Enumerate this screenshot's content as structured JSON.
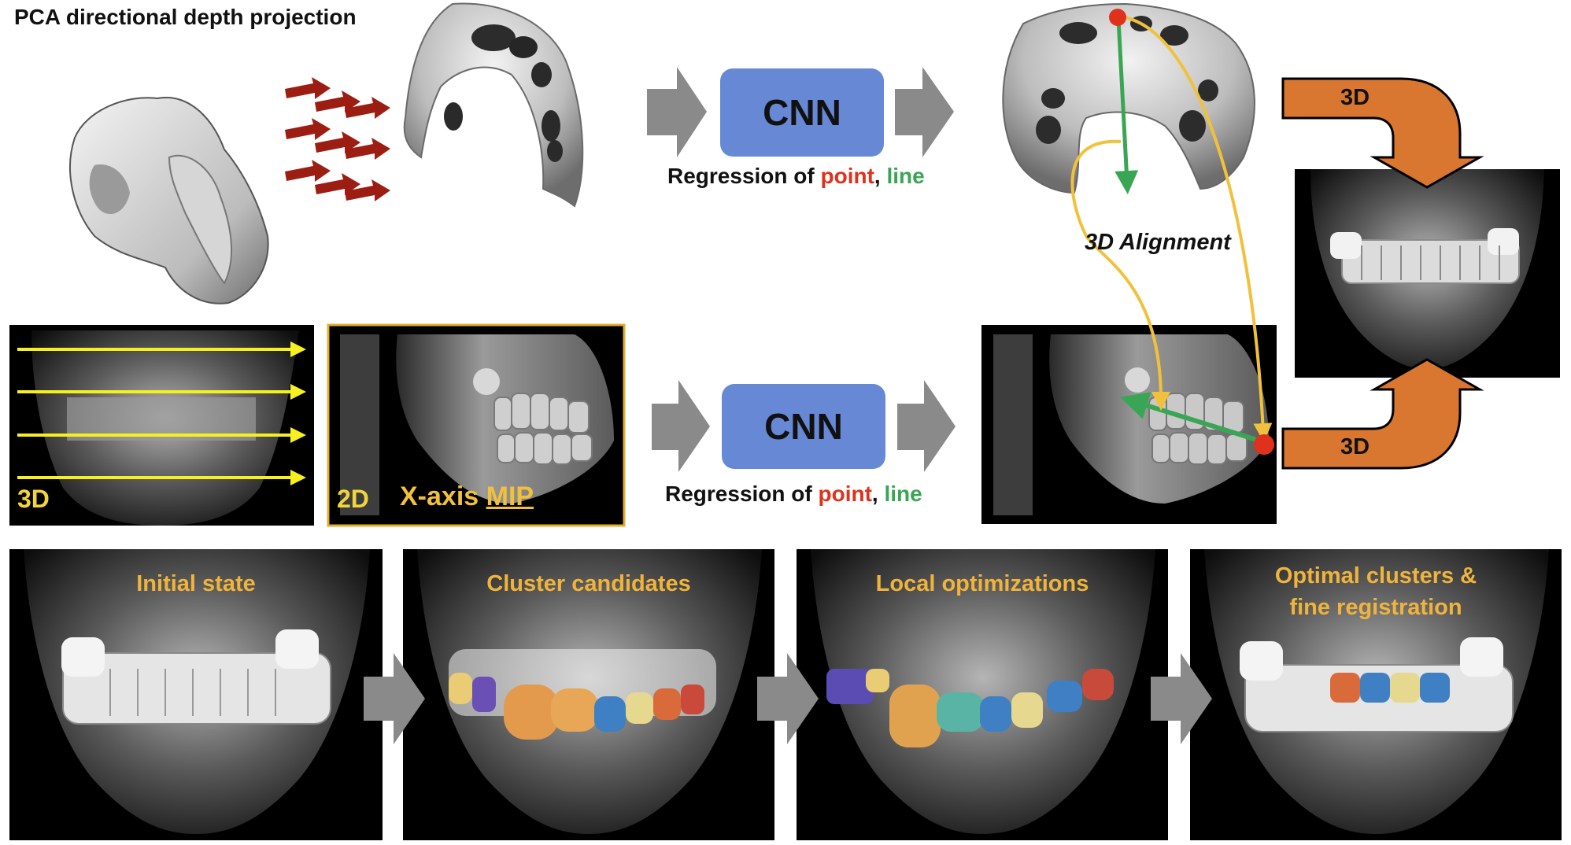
{
  "title": "PCA directional depth projection",
  "cnn_label": "CNN",
  "regression": {
    "prefix": "Regression of ",
    "point": "point",
    "sep": ", ",
    "line": "line"
  },
  "alignment_label": "3D Alignment",
  "arrow_3d_label": "3D",
  "scan_panel_label": "3D",
  "mip_panel": {
    "dim_label": "2D",
    "text_a": "X-axis ",
    "text_b": "MIP"
  },
  "stages": [
    {
      "label": "Initial state"
    },
    {
      "label": "Cluster candidates"
    },
    {
      "label": "Local optimizations"
    },
    {
      "label": "Optimal clusters &"
    },
    {
      "label": "fine registration"
    }
  ],
  "colors": {
    "cnn_fill": "#6788d4",
    "point": "#e0311d",
    "line": "#3aa655",
    "alignment_curve": "#f2c13c",
    "orange_arrow": "#d9762f",
    "gray_arrow": "#8a8a8a",
    "projection_arrows": "#9c1d12",
    "scan_lines": "#f7f020",
    "caption": "#f0b43c"
  }
}
